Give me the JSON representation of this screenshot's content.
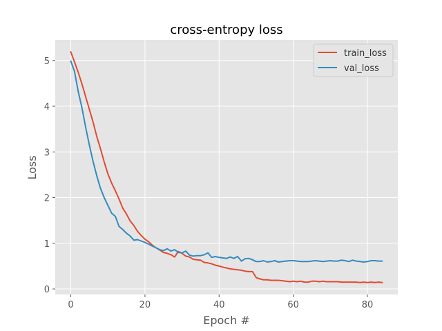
{
  "chart_data": {
    "type": "line",
    "title": "cross-entropy loss",
    "xlabel": "Epoch #",
    "ylabel": "Loss",
    "xlim": [
      -4.2,
      88.2
    ],
    "ylim": [
      -0.12,
      5.45
    ],
    "xticks": [
      0,
      20,
      40,
      60,
      80
    ],
    "yticks": [
      0,
      1,
      2,
      3,
      4,
      5
    ],
    "grid": true,
    "legend_position": "top-right",
    "style": {
      "background": "#E5E5E5",
      "grid_color": "#FFFFFF"
    },
    "series": [
      {
        "name": "train_loss",
        "color": "#E24A33",
        "x": [
          0,
          1,
          2,
          3,
          4,
          5,
          6,
          7,
          8,
          9,
          10,
          11,
          12,
          13,
          14,
          15,
          16,
          17,
          18,
          19,
          20,
          21,
          22,
          23,
          24,
          25,
          26,
          27,
          28,
          29,
          30,
          31,
          32,
          33,
          34,
          35,
          36,
          37,
          38,
          39,
          40,
          41,
          42,
          43,
          44,
          45,
          46,
          47,
          48,
          49,
          50,
          51,
          52,
          53,
          54,
          55,
          56,
          57,
          58,
          59,
          60,
          61,
          62,
          63,
          64,
          65,
          66,
          67,
          68,
          69,
          70,
          71,
          72,
          73,
          74,
          75,
          76,
          77,
          78,
          79,
          80,
          81,
          82,
          83,
          84
        ],
        "values": [
          5.19,
          4.97,
          4.74,
          4.49,
          4.21,
          3.93,
          3.65,
          3.34,
          3.07,
          2.78,
          2.52,
          2.32,
          2.15,
          1.97,
          1.77,
          1.64,
          1.49,
          1.39,
          1.26,
          1.17,
          1.09,
          1.03,
          0.96,
          0.9,
          0.85,
          0.8,
          0.78,
          0.75,
          0.7,
          0.82,
          0.78,
          0.72,
          0.7,
          0.65,
          0.64,
          0.63,
          0.58,
          0.57,
          0.55,
          0.52,
          0.5,
          0.48,
          0.46,
          0.44,
          0.43,
          0.42,
          0.41,
          0.39,
          0.38,
          0.38,
          0.25,
          0.22,
          0.2,
          0.2,
          0.19,
          0.19,
          0.19,
          0.18,
          0.17,
          0.16,
          0.17,
          0.16,
          0.17,
          0.15,
          0.15,
          0.17,
          0.17,
          0.16,
          0.17,
          0.16,
          0.16,
          0.16,
          0.16,
          0.15,
          0.15,
          0.15,
          0.15,
          0.15,
          0.14,
          0.15,
          0.14,
          0.15,
          0.14,
          0.15,
          0.14
        ]
      },
      {
        "name": "val_loss",
        "color": "#348ABD",
        "x": [
          0,
          1,
          2,
          3,
          4,
          5,
          6,
          7,
          8,
          9,
          10,
          11,
          12,
          13,
          14,
          15,
          16,
          17,
          18,
          19,
          20,
          21,
          22,
          23,
          24,
          25,
          26,
          27,
          28,
          29,
          30,
          31,
          32,
          33,
          34,
          35,
          36,
          37,
          38,
          39,
          40,
          41,
          42,
          43,
          44,
          45,
          46,
          47,
          48,
          49,
          50,
          51,
          52,
          53,
          54,
          55,
          56,
          57,
          58,
          59,
          60,
          61,
          62,
          63,
          64,
          65,
          66,
          67,
          68,
          69,
          70,
          71,
          72,
          73,
          74,
          75,
          76,
          77,
          78,
          79,
          80,
          81,
          82,
          83,
          84
        ],
        "values": [
          4.99,
          4.76,
          4.32,
          3.97,
          3.54,
          3.15,
          2.79,
          2.48,
          2.2,
          2.0,
          1.83,
          1.66,
          1.59,
          1.37,
          1.3,
          1.22,
          1.16,
          1.07,
          1.08,
          1.05,
          1.02,
          0.98,
          0.94,
          0.9,
          0.86,
          0.84,
          0.88,
          0.83,
          0.86,
          0.8,
          0.79,
          0.83,
          0.74,
          0.72,
          0.73,
          0.73,
          0.75,
          0.79,
          0.69,
          0.71,
          0.69,
          0.68,
          0.67,
          0.7,
          0.67,
          0.71,
          0.61,
          0.66,
          0.67,
          0.64,
          0.6,
          0.6,
          0.62,
          0.59,
          0.6,
          0.62,
          0.59,
          0.6,
          0.61,
          0.62,
          0.62,
          0.61,
          0.6,
          0.6,
          0.6,
          0.61,
          0.62,
          0.61,
          0.6,
          0.61,
          0.62,
          0.61,
          0.61,
          0.63,
          0.62,
          0.6,
          0.63,
          0.61,
          0.6,
          0.59,
          0.6,
          0.62,
          0.62,
          0.61,
          0.61
        ]
      }
    ]
  }
}
